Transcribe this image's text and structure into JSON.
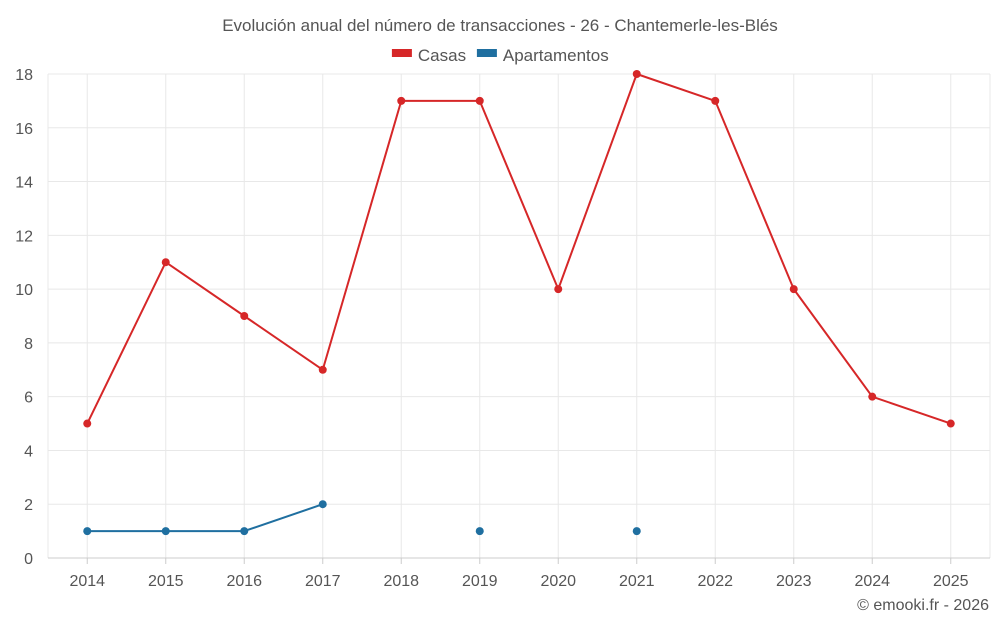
{
  "chart_data": {
    "type": "line",
    "title": "Evolución anual del número de transacciones - 26 - Chantemerle-les-Blés",
    "xlabel": "",
    "ylabel": "",
    "categories": [
      "2014",
      "2015",
      "2016",
      "2017",
      "2018",
      "2019",
      "2020",
      "2021",
      "2022",
      "2023",
      "2024",
      "2025"
    ],
    "ylim": [
      0,
      18
    ],
    "yticks": [
      0,
      2,
      4,
      6,
      8,
      10,
      12,
      14,
      16,
      18
    ],
    "grid": true,
    "legend_position": "top-center",
    "series": [
      {
        "name": "Casas",
        "color": "#d62728",
        "values": [
          5,
          11,
          9,
          7,
          17,
          17,
          10,
          18,
          17,
          10,
          6,
          5
        ]
      },
      {
        "name": "Apartamentos",
        "color": "#1f6fa0",
        "values": [
          1,
          1,
          1,
          2,
          null,
          1,
          null,
          1,
          null,
          null,
          null,
          null
        ]
      }
    ]
  },
  "credit": "© emooki.fr - 2026"
}
